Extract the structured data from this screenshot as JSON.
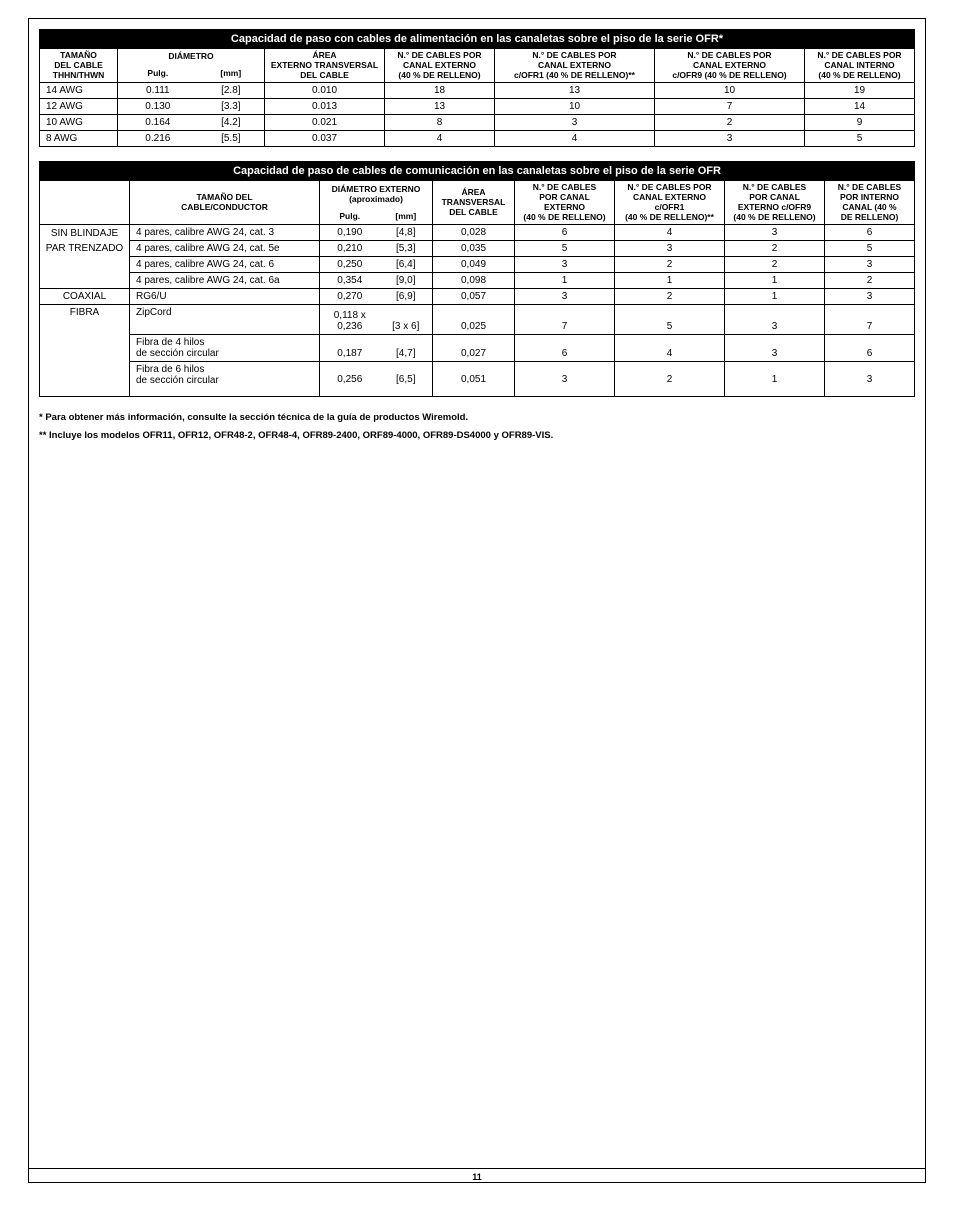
{
  "page_number": "11",
  "table1": {
    "title": "Capacidad de paso con cables de alimentación en las canaletas sobre el piso de la serie OFR*",
    "headers": {
      "c0": "TAMAÑO\nDEL CABLE\nTHHN/THWN",
      "c1a": "DIÁMETRO",
      "c1b_l": "Pulg.",
      "c1b_r": "[mm]",
      "c2": "ÁREA\nEXTERNO TRANSVERSAL\nDEL CABLE",
      "c3": "N.° DE CABLES POR\nCANAL EXTERNO\n(40 % DE RELLENO)",
      "c4": "N.° DE CABLES POR\nCANAL EXTERNO\nc/OFR1 (40 % DE RELLENO)**",
      "c5": "N.° DE CABLES POR\nCANAL EXTERNO\nc/OFR9 (40 % DE RELLENO)",
      "c6": "N.° DE CABLES POR\nCANAL INTERNO\n(40 % DE RELLENO)"
    },
    "rows": [
      {
        "c0": "14 AWG",
        "c1l": "0.111",
        "c1r": "[2.8]",
        "c2": "0.010",
        "c3": "18",
        "c4": "13",
        "c5": "10",
        "c6": "19"
      },
      {
        "c0": "12 AWG",
        "c1l": "0.130",
        "c1r": "[3.3]",
        "c2": "0.013",
        "c3": "13",
        "c4": "10",
        "c5": "7",
        "c6": "14"
      },
      {
        "c0": "10 AWG",
        "c1l": "0.164",
        "c1r": "[4.2]",
        "c2": "0.021",
        "c3": "8",
        "c4": "3",
        "c5": "2",
        "c6": "9"
      },
      {
        "c0": "8 AWG",
        "c1l": "0.216",
        "c1r": "[5.5]",
        "c2": "0.037",
        "c3": "4",
        "c4": "4",
        "c5": "3",
        "c6": "5"
      }
    ]
  },
  "table2": {
    "title": "Capacidad de paso de cables de comunicación en las canaletas sobre el piso de la serie OFR",
    "headers": {
      "c0": "",
      "c1": "TAMAÑO DEL\nCABLE/CONDUCTOR",
      "c2a": "DIÁMETRO EXTERNO\n(aproximado)",
      "c2l": "Pulg.",
      "c2r": "[mm]",
      "c3": "ÁREA\nTRANSVERSAL\nDEL CABLE",
      "c4": "N.° DE CABLES\nPOR CANAL\nEXTERNO\n(40 % DE RELLENO)",
      "c5": "N.° DE CABLES POR\nCANAL EXTERNO\nc/OFR1\n(40 % DE RELLENO)**",
      "c6": "N.° DE CABLES\nPOR CANAL\nEXTERNO c/OFR9\n(40 % DE RELLENO)",
      "c7": "N.° DE CABLES\nPOR INTERNO\nCANAL (40 %\nDE RELLENO)"
    },
    "groups": [
      {
        "label": "SIN BLINDAJE",
        "rows": [
          {
            "c1": "4 pares,   calibre AWG 24, cat. 3",
            "c2l": "0,190",
            "c2r": "[4,8]",
            "c3": "0,028",
            "c4": "6",
            "c5": "4",
            "c6": "3",
            "c7": "6"
          }
        ]
      },
      {
        "label": "PAR TRENZADO",
        "rows": [
          {
            "c1": "4 pares,   calibre AWG 24, cat. 5e",
            "c2l": "0,210",
            "c2r": "[5,3]",
            "c3": "0,035",
            "c4": "5",
            "c5": "3",
            "c6": "2",
            "c7": "5"
          },
          {
            "c1": "4 pares,   calibre AWG 24, cat. 6",
            "c2l": "0,250",
            "c2r": "[6,4]",
            "c3": "0,049",
            "c4": "3",
            "c5": "2",
            "c6": "2",
            "c7": "3"
          },
          {
            "c1": "4 pares,   calibre AWG 24, cat. 6a",
            "c2l": "0,354",
            "c2r": "[9,0]",
            "c3": "0,098",
            "c4": "1",
            "c5": "1",
            "c6": "1",
            "c7": "2"
          }
        ]
      },
      {
        "label": "COAXIAL",
        "rows": [
          {
            "c1": "RG6/U",
            "c2l": "0,270",
            "c2r": "[6,9]",
            "c3": "0,057",
            "c4": "3",
            "c5": "2",
            "c6": "1",
            "c7": "3"
          }
        ]
      },
      {
        "label": "FIBRA",
        "rows": [
          {
            "c1": "ZipCord",
            "c2l": "0,118 x\n0,236",
            "c2r": "[3 x 6]",
            "c3": "0,025",
            "c4": "7",
            "c5": "5",
            "c6": "3",
            "c7": "7"
          },
          {
            "c1": "Fibra de 4 hilos\nde sección circular",
            "c2l": "0,187",
            "c2r": "[4,7]",
            "c3": "0,027",
            "c4": "6",
            "c5": "4",
            "c6": "3",
            "c7": "6"
          },
          {
            "c1": "Fibra de 6 hilos\nde sección circular",
            "c2l": "0,256",
            "c2r": "[6,5]",
            "c3": "0,051",
            "c4": "3",
            "c5": "2",
            "c6": "1",
            "c7": "3"
          }
        ]
      }
    ]
  },
  "footnotes": {
    "f1": "*   Para obtener más información, consulte la sección técnica de la guía de productos Wiremold.",
    "f2": "**  Incluye los modelos OFR11, OFR12, OFR48-2, OFR48-4, OFR89-2400, ORF89-4000, OFR89-DS4000 y OFR89-VIS."
  },
  "colors": {
    "title_bg": "#000000",
    "title_fg": "#ffffff",
    "border": "#000000",
    "page_bg": "#ffffff"
  }
}
